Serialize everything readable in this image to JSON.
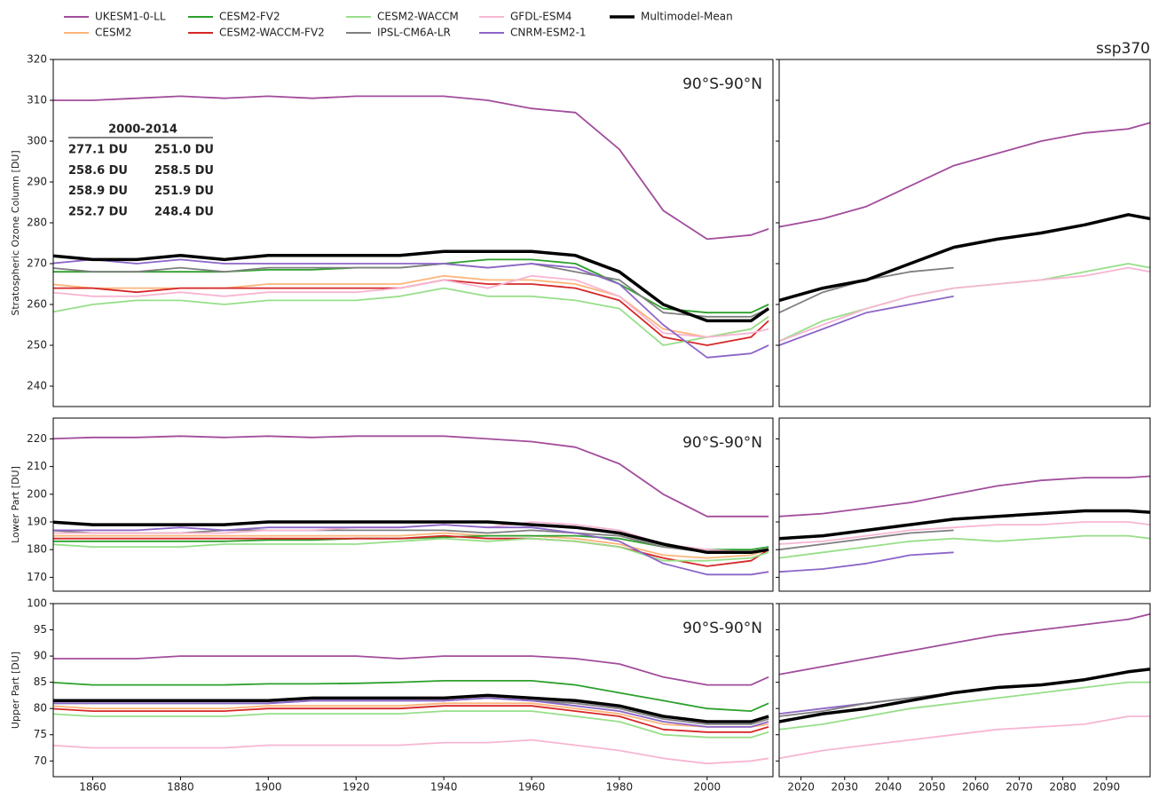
{
  "legend_cols": 5,
  "chart_data": [
    {
      "type": "line",
      "annotation": "90°S-90°N",
      "ylabel": "Stratospheric Ozone Column [DU]",
      "xlim": [
        1851,
        2015
      ],
      "ylim": [
        235,
        320
      ],
      "yticks": [
        240,
        250,
        260,
        270,
        280,
        290,
        300,
        310,
        320
      ],
      "x": [
        1850,
        1860,
        1870,
        1880,
        1890,
        1900,
        1910,
        1920,
        1930,
        1940,
        1950,
        1960,
        1970,
        1980,
        1990,
        2000,
        2010,
        2014
      ],
      "inset": {
        "title": "2000-2014",
        "labels": [
          "277.1 DU",
          "258.6 DU",
          "258.9 DU",
          "252.7 DU",
          "251.0 DU",
          "258.5 DU",
          "251.9 DU",
          "248.4 DU"
        ]
      },
      "series": [
        {
          "name": "UKESM1-0-LL",
          "color": "#a24d9c",
          "values": [
            310,
            310,
            310.5,
            311,
            310.5,
            311,
            310.5,
            311,
            311,
            311,
            310,
            308,
            307,
            298,
            283,
            276,
            277,
            278.5
          ]
        },
        {
          "name": "CESM2",
          "color": "#fdb57a",
          "values": [
            265,
            264,
            264,
            264,
            264,
            265,
            265,
            265,
            265,
            267,
            266,
            266,
            265,
            262,
            254,
            252,
            254,
            257
          ]
        },
        {
          "name": "CESM2-FV2",
          "color": "#2ca02c",
          "values": [
            268,
            268,
            268,
            268,
            268,
            268.5,
            268.5,
            269,
            269,
            270,
            271,
            271,
            270,
            265,
            259,
            258,
            258,
            260
          ]
        },
        {
          "name": "CESM2-WACCM-FV2",
          "color": "#d62728",
          "values": [
            264,
            264,
            263,
            264,
            264,
            264,
            264,
            264,
            264,
            266,
            265,
            265,
            264,
            261,
            252,
            250,
            252,
            256
          ]
        },
        {
          "name": "CESM2-WACCM",
          "color": "#98df8a",
          "values": [
            258,
            260,
            261,
            261,
            260,
            261,
            261,
            261,
            262,
            264,
            262,
            262,
            261,
            259,
            250,
            252,
            254,
            257
          ]
        },
        {
          "name": "IPSL-CM6A-LR",
          "color": "#7f7f7f",
          "values": [
            269,
            268,
            268,
            269,
            268,
            269,
            269,
            269,
            269,
            270,
            269,
            270,
            268,
            266,
            258,
            257,
            257,
            259
          ]
        },
        {
          "name": "GFDL-ESM4",
          "color": "#f7b6d2",
          "values": [
            263,
            262,
            262,
            263,
            262,
            263,
            263,
            263,
            264,
            266,
            264,
            267,
            266,
            262,
            253,
            252,
            253,
            254
          ]
        },
        {
          "name": "CNRM-ESM2-1",
          "color": "#8c65c8",
          "values": [
            270,
            271,
            270,
            271,
            270,
            270,
            270,
            270,
            270,
            270,
            269,
            270,
            269,
            265,
            255,
            247,
            248,
            250
          ]
        },
        {
          "name": "Multimodel-Mean",
          "color": "#000000",
          "values": [
            272,
            271,
            271,
            272,
            271,
            272,
            272,
            272,
            272,
            273,
            273,
            273,
            272,
            268,
            260,
            256,
            256,
            259
          ]
        }
      ]
    },
    {
      "type": "line",
      "title": "ssp370",
      "xlim": [
        2015,
        2100
      ],
      "ylim": [
        235,
        320
      ],
      "yticks": [
        240,
        250,
        260,
        270,
        280,
        290,
        300,
        310,
        320
      ],
      "x": [
        2015,
        2025,
        2035,
        2045,
        2055,
        2065,
        2075,
        2085,
        2095,
        2100
      ],
      "series": [
        {
          "color": "#a24d9c",
          "values": [
            279,
            281,
            284,
            289,
            294,
            297,
            300,
            302,
            303,
            304.5
          ]
        },
        {
          "color": "#98df8a",
          "values": [
            251,
            256,
            259,
            262,
            264,
            265,
            266,
            268,
            270,
            269
          ]
        },
        {
          "color": "#f7b6d2",
          "values": [
            251,
            255,
            259,
            262,
            264,
            265,
            266,
            267,
            269,
            268
          ]
        },
        {
          "color": "#7f7f7f",
          "values": [
            258,
            263,
            266,
            268,
            269,
            null,
            null,
            null,
            null,
            null
          ]
        },
        {
          "color": "#8c65c8",
          "values": [
            250,
            254,
            258,
            260,
            262,
            null,
            null,
            null,
            null,
            null
          ]
        },
        {
          "color": "#000000",
          "values": [
            261,
            264,
            266,
            270,
            274,
            276,
            277.5,
            279.5,
            282,
            281
          ]
        }
      ]
    },
    {
      "type": "line",
      "annotation": "90°S-90°N",
      "ylabel": "Lower Part [DU]",
      "xlim": [
        1851,
        2015
      ],
      "ylim": [
        165,
        227.5
      ],
      "yticks": [
        170,
        180,
        190,
        200,
        210,
        220
      ],
      "x": [
        1850,
        1860,
        1870,
        1880,
        1890,
        1900,
        1910,
        1920,
        1930,
        1940,
        1950,
        1960,
        1970,
        1980,
        1990,
        2000,
        2010,
        2014
      ],
      "series": [
        {
          "color": "#a24d9c",
          "values": [
            220,
            220.5,
            220.5,
            221,
            220.5,
            221,
            220.5,
            221,
            221,
            221,
            220,
            219,
            217,
            211,
            200,
            192,
            192,
            192
          ]
        },
        {
          "color": "#fdb57a",
          "values": [
            185,
            185,
            185,
            185,
            185,
            185,
            185,
            185,
            185,
            186,
            185,
            185,
            184,
            182,
            178,
            177,
            178,
            180
          ]
        },
        {
          "color": "#2ca02c",
          "values": [
            183,
            183,
            183,
            183,
            183,
            183.5,
            183.5,
            184,
            184,
            184.5,
            185,
            185,
            185,
            184,
            181,
            180,
            180,
            181
          ]
        },
        {
          "color": "#d62728",
          "values": [
            184,
            184,
            184,
            184,
            184,
            184,
            184,
            184,
            184,
            185,
            184,
            184,
            183,
            181,
            177,
            174,
            176,
            180
          ]
        },
        {
          "color": "#98df8a",
          "values": [
            182,
            181,
            181,
            181,
            182,
            182,
            182,
            182,
            183,
            184,
            183,
            184,
            183,
            181,
            176,
            176,
            177,
            179
          ]
        },
        {
          "color": "#7f7f7f",
          "values": [
            187,
            186,
            186,
            186,
            187,
            187,
            187,
            187,
            187,
            187,
            186,
            187,
            186,
            185,
            181,
            179,
            179,
            180
          ]
        },
        {
          "color": "#f7b6d2",
          "values": [
            186,
            186,
            186,
            186,
            186,
            187,
            187,
            188,
            188,
            189,
            188,
            190,
            189,
            187,
            182,
            180,
            179,
            180
          ]
        },
        {
          "color": "#8c65c8",
          "values": [
            187,
            187,
            187,
            188,
            187,
            188,
            188,
            188,
            188,
            189,
            188,
            188,
            186,
            183,
            175,
            171,
            171,
            172
          ]
        },
        {
          "color": "#000000",
          "values": [
            190,
            189,
            189,
            189,
            189,
            190,
            190,
            190,
            190,
            190,
            190,
            189,
            188,
            186,
            182,
            179,
            179,
            180
          ]
        }
      ]
    },
    {
      "type": "line",
      "xlim": [
        2015,
        2100
      ],
      "ylim": [
        165,
        227.5
      ],
      "yticks": [
        170,
        180,
        190,
        200,
        210,
        220
      ],
      "x": [
        2015,
        2025,
        2035,
        2045,
        2055,
        2065,
        2075,
        2085,
        2095,
        2100
      ],
      "series": [
        {
          "color": "#a24d9c",
          "values": [
            192,
            193,
            195,
            197,
            200,
            203,
            205,
            206,
            206,
            206.5
          ]
        },
        {
          "color": "#98df8a",
          "values": [
            177,
            179,
            181,
            183,
            184,
            183,
            184,
            185,
            185,
            184
          ]
        },
        {
          "color": "#f7b6d2",
          "values": [
            182,
            183,
            185,
            187,
            188,
            189,
            189,
            190,
            190,
            189
          ]
        },
        {
          "color": "#7f7f7f",
          "values": [
            180,
            182,
            184,
            186,
            187,
            null,
            null,
            null,
            null,
            null
          ]
        },
        {
          "color": "#8c65c8",
          "values": [
            172,
            173,
            175,
            178,
            179,
            null,
            null,
            null,
            null,
            null
          ]
        },
        {
          "color": "#000000",
          "values": [
            184,
            185,
            187,
            189,
            191,
            192,
            193,
            194,
            194,
            193.5
          ]
        }
      ]
    },
    {
      "type": "line",
      "annotation": "90°S-90°N",
      "ylabel": "Upper Part [DU]",
      "xlim": [
        1851,
        2015
      ],
      "ylim": [
        67,
        100
      ],
      "yticks": [
        70,
        75,
        80,
        85,
        90,
        95,
        100
      ],
      "xticks": [
        1860,
        1880,
        1900,
        1920,
        1940,
        1960,
        1980,
        2000
      ],
      "x": [
        1850,
        1860,
        1870,
        1880,
        1890,
        1900,
        1910,
        1920,
        1930,
        1940,
        1950,
        1960,
        1970,
        1980,
        1990,
        2000,
        2010,
        2014
      ],
      "series": [
        {
          "color": "#a24d9c",
          "values": [
            89.5,
            89.5,
            89.5,
            90,
            90,
            90,
            90,
            90,
            89.5,
            90,
            90,
            90,
            89.5,
            88.5,
            86,
            84.5,
            84.5,
            86
          ]
        },
        {
          "color": "#fdb57a",
          "values": [
            80.5,
            80,
            80,
            80,
            80,
            80.5,
            80.5,
            80.5,
            80.5,
            81,
            81,
            81,
            80,
            79,
            77,
            76.5,
            76.5,
            77
          ]
        },
        {
          "color": "#2ca02c",
          "values": [
            85,
            84.5,
            84.5,
            84.5,
            84.5,
            84.7,
            84.7,
            84.8,
            85,
            85.3,
            85.3,
            85.3,
            84.5,
            83,
            81.5,
            80,
            79.5,
            81
          ]
        },
        {
          "color": "#d62728",
          "values": [
            80,
            79.5,
            79.5,
            79.5,
            79.5,
            80,
            80,
            80,
            80,
            80.5,
            80.5,
            80.5,
            79.5,
            78.5,
            76,
            75.5,
            75.5,
            76.5
          ]
        },
        {
          "color": "#98df8a",
          "values": [
            79,
            78.5,
            78.5,
            78.5,
            78.5,
            79,
            79,
            79,
            79,
            79.5,
            79.5,
            79.5,
            78.5,
            77.5,
            75,
            74.5,
            74.5,
            75.5
          ]
        },
        {
          "color": "#7f7f7f",
          "values": [
            81,
            81,
            81,
            81,
            81,
            81,
            81.5,
            81.5,
            81.5,
            81.5,
            82,
            81.5,
            81,
            80,
            78,
            77,
            77,
            78
          ]
        },
        {
          "color": "#f7b6d2",
          "values": [
            73,
            72.5,
            72.5,
            72.5,
            72.5,
            73,
            73,
            73,
            73,
            73.5,
            73.5,
            74,
            73,
            72,
            70.5,
            69.5,
            70,
            70.5
          ]
        },
        {
          "color": "#8c65c8",
          "values": [
            81,
            81,
            81,
            81,
            81,
            81,
            81.5,
            81.5,
            81.5,
            81.5,
            82,
            81.5,
            80.5,
            79.5,
            77.5,
            76.5,
            76.5,
            77.5
          ]
        },
        {
          "color": "#000000",
          "values": [
            81.5,
            81.5,
            81.5,
            81.5,
            81.5,
            81.5,
            82,
            82,
            82,
            82,
            82.5,
            82,
            81.5,
            80.5,
            78.5,
            77.5,
            77.5,
            78.5
          ]
        }
      ]
    },
    {
      "type": "line",
      "xlim": [
        2015,
        2100
      ],
      "ylim": [
        67,
        100
      ],
      "yticks": [
        70,
        75,
        80,
        85,
        90,
        95,
        100
      ],
      "xticks": [
        2020,
        2030,
        2040,
        2050,
        2060,
        2070,
        2080,
        2090
      ],
      "x": [
        2015,
        2025,
        2035,
        2045,
        2055,
        2065,
        2075,
        2085,
        2095,
        2100
      ],
      "series": [
        {
          "color": "#a24d9c",
          "values": [
            86.5,
            88,
            89.5,
            91,
            92.5,
            94,
            95,
            96,
            97,
            98
          ]
        },
        {
          "color": "#98df8a",
          "values": [
            76,
            77,
            78.5,
            80,
            81,
            82,
            83,
            84,
            85,
            85
          ]
        },
        {
          "color": "#f7b6d2",
          "values": [
            70.5,
            72,
            73,
            74,
            75,
            76,
            76.5,
            77,
            78.5,
            78.5
          ]
        },
        {
          "color": "#8c65c8",
          "values": [
            79,
            80,
            81,
            82,
            83,
            null,
            null,
            null,
            null,
            null
          ]
        },
        {
          "color": "#7f7f7f",
          "values": [
            78.5,
            79.5,
            81,
            82,
            83,
            null,
            null,
            null,
            null,
            null
          ]
        },
        {
          "color": "#000000",
          "values": [
            77.5,
            79,
            80,
            81.5,
            83,
            84,
            84.5,
            85.5,
            87,
            87.5
          ]
        }
      ]
    }
  ]
}
